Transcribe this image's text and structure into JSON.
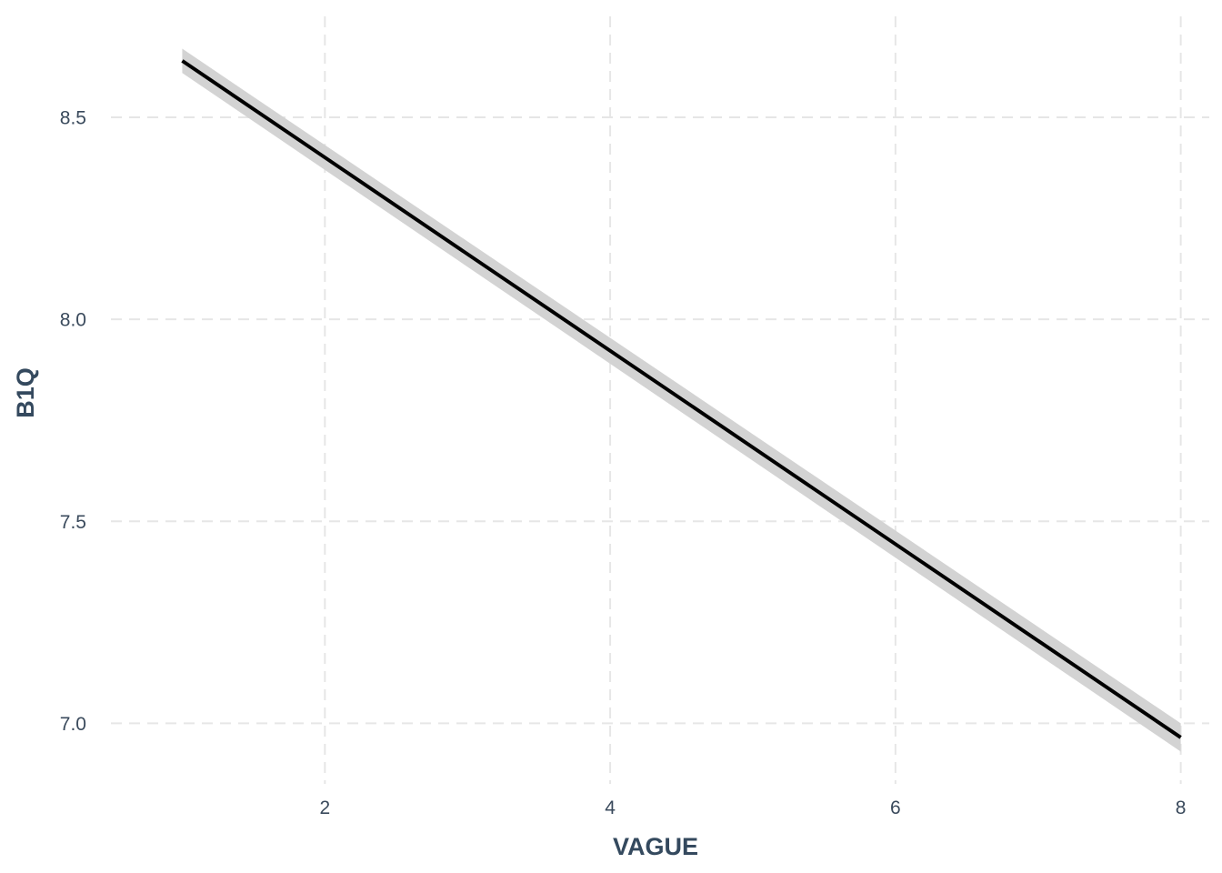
{
  "chart_data": {
    "type": "line",
    "xlabel": "VAGUE",
    "ylabel": "B1Q",
    "xlim": [
      0.5,
      8.2
    ],
    "ylim": [
      6.85,
      8.75
    ],
    "x_ticks": [
      2,
      4,
      6,
      8
    ],
    "x_tick_labels": [
      "2",
      "4",
      "6",
      "8"
    ],
    "y_ticks": [
      7.0,
      7.5,
      8.0,
      8.5
    ],
    "y_tick_labels": [
      "7.0",
      "7.5",
      "8.0",
      "8.5"
    ],
    "grid": true,
    "grid_style": "dashed",
    "series": [
      {
        "x": [
          1,
          8
        ],
        "y": [
          8.64,
          6.965
        ],
        "ci_lower": [
          8.61,
          6.93
        ],
        "ci_upper": [
          8.67,
          7.0
        ]
      }
    ],
    "colors": {
      "line": "#000000",
      "ribbon": "#d3d3d3",
      "grid": "#e6e6e6",
      "tick_text": "#3a4a5c",
      "axis_title": "#34495e"
    }
  }
}
